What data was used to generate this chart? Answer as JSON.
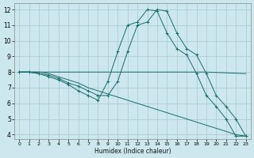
{
  "xlabel": "Humidex (Indice chaleur)",
  "bg_color": "#cce8ee",
  "grid_color": "#aacdd5",
  "line_color": "#1a6b6b",
  "xlim": [
    -0.5,
    23.5
  ],
  "ylim": [
    3.7,
    12.4
  ],
  "xticks": [
    0,
    1,
    2,
    3,
    4,
    5,
    6,
    7,
    8,
    9,
    10,
    11,
    12,
    13,
    14,
    15,
    16,
    17,
    18,
    19,
    20,
    21,
    22,
    23
  ],
  "yticks": [
    4,
    5,
    6,
    7,
    8,
    9,
    10,
    11,
    12
  ],
  "lines": [
    {
      "x": [
        0,
        1,
        2,
        3,
        4,
        5,
        6,
        7,
        8,
        9,
        10,
        11,
        12,
        13,
        14,
        15,
        16,
        17,
        18,
        19,
        23
      ],
      "y": [
        8,
        8,
        8,
        8,
        8,
        8,
        8,
        8,
        8,
        8,
        8,
        8,
        8,
        8,
        8,
        8,
        8,
        8,
        8,
        8,
        7.9
      ],
      "has_markers": false
    },
    {
      "x": [
        0,
        1,
        2,
        3,
        4,
        5,
        6,
        7,
        8,
        9,
        10,
        11,
        12,
        13,
        14,
        15,
        16,
        17,
        18,
        19,
        20,
        21,
        22,
        23
      ],
      "y": [
        8,
        8,
        8,
        7.9,
        7.7,
        7.5,
        7.3,
        7.0,
        6.8,
        6.6,
        6.4,
        6.2,
        6.0,
        5.8,
        5.6,
        5.4,
        5.2,
        5.0,
        4.8,
        4.6,
        4.4,
        4.2,
        4.0,
        3.9
      ],
      "has_markers": false
    },
    {
      "x": [
        0,
        1,
        2,
        3,
        4,
        5,
        6,
        7,
        8,
        9,
        10,
        11,
        12,
        13,
        14,
        15,
        16,
        17,
        18,
        19,
        20,
        21,
        22,
        23
      ],
      "y": [
        8,
        8,
        7.9,
        7.8,
        7.6,
        7.3,
        7.1,
        6.8,
        6.5,
        6.5,
        7.4,
        9.3,
        11.0,
        11.2,
        12.0,
        11.9,
        10.5,
        9.5,
        9.1,
        7.9,
        6.5,
        5.8,
        5.0,
        3.9
      ],
      "has_markers": true
    },
    {
      "x": [
        0,
        1,
        2,
        3,
        4,
        5,
        6,
        7,
        8,
        9,
        10,
        11,
        12,
        13,
        14,
        15,
        16,
        17,
        18,
        19,
        20,
        21,
        22,
        23
      ],
      "y": [
        8,
        8,
        7.9,
        7.7,
        7.5,
        7.2,
        6.8,
        6.5,
        6.2,
        7.4,
        9.3,
        11.0,
        11.2,
        12.0,
        11.9,
        10.5,
        9.5,
        9.1,
        7.9,
        6.5,
        5.8,
        5.0,
        3.9,
        3.9
      ],
      "has_markers": true
    }
  ]
}
